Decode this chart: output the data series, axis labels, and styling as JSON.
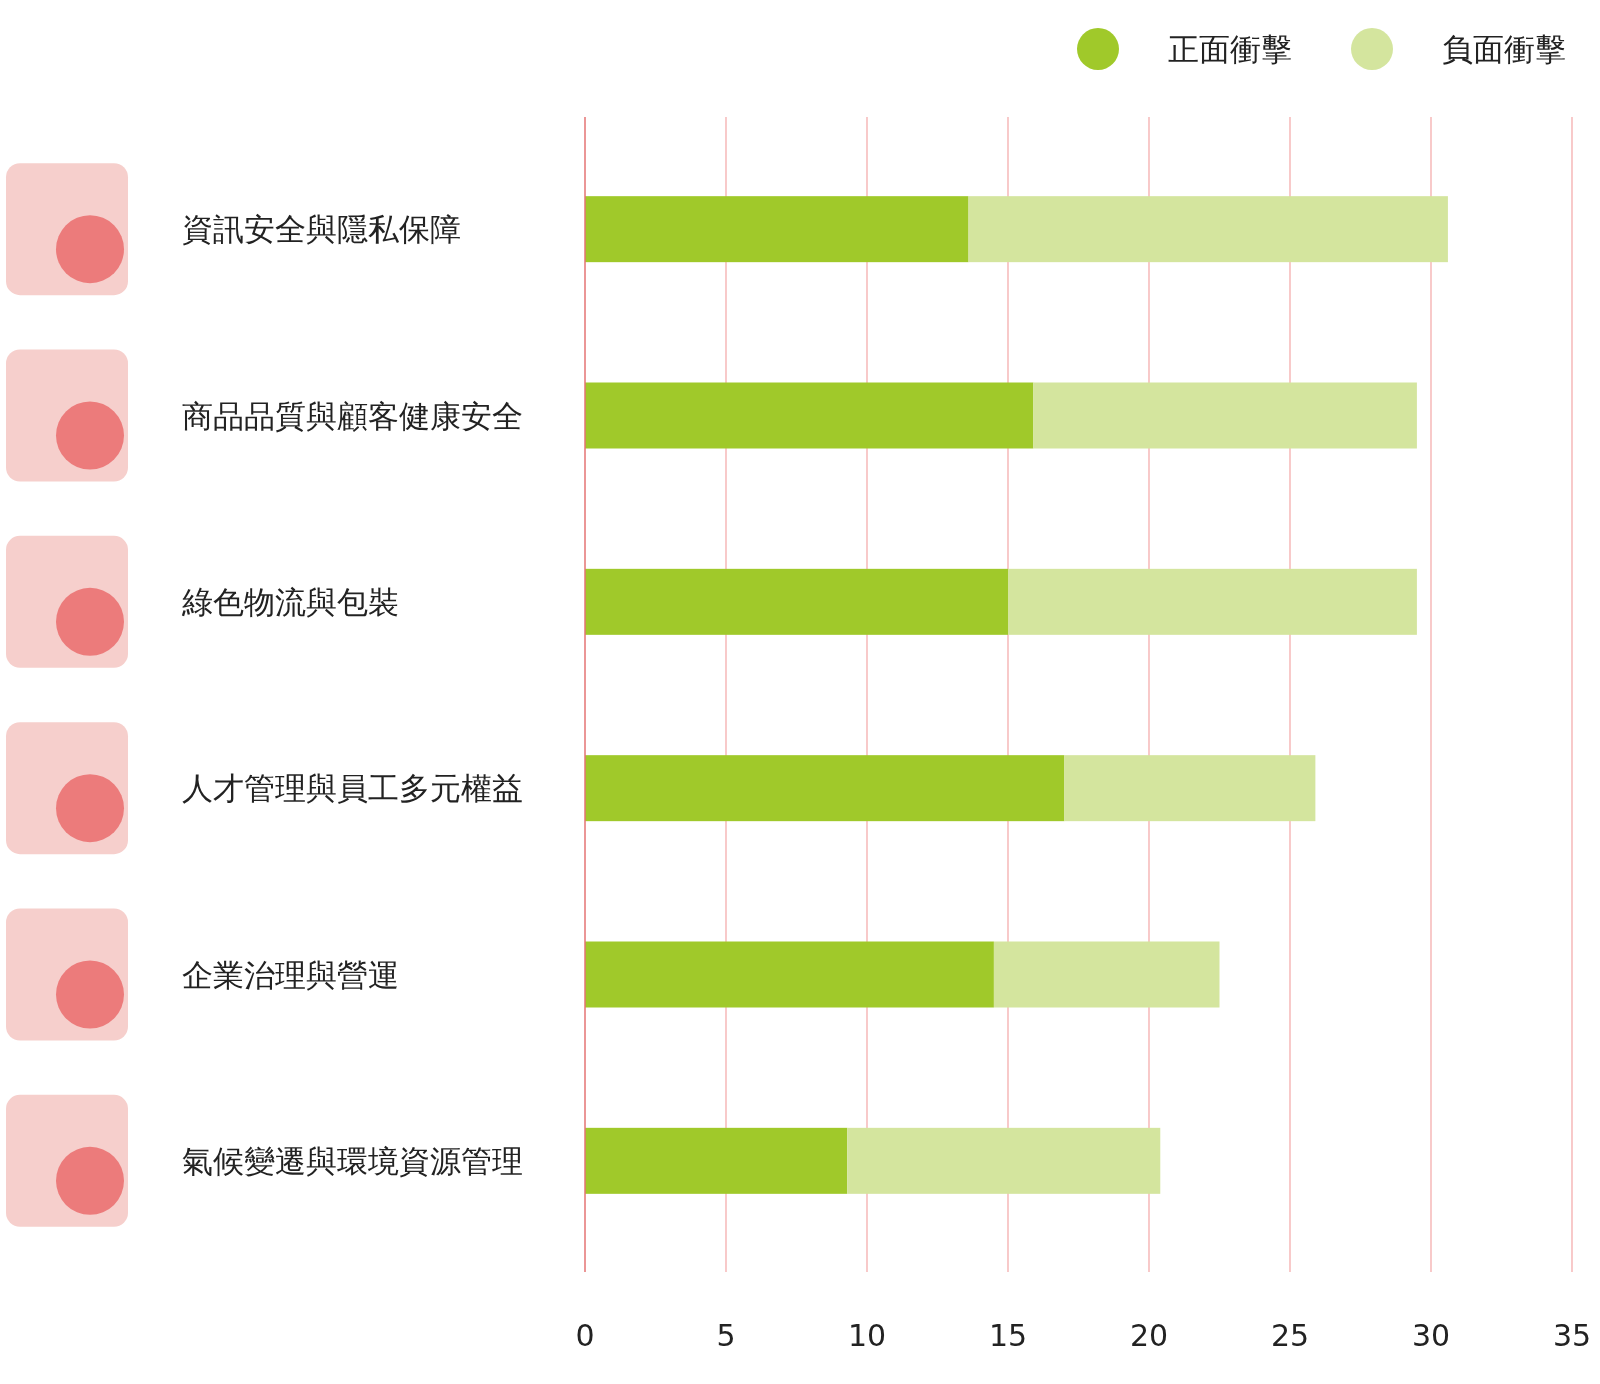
{
  "chart_data": {
    "type": "bar",
    "orientation": "horizontal",
    "stacked": true,
    "categories": [
      "資訊安全與隱私保障",
      "商品品質與顧客健康安全",
      "綠色物流與包裝",
      "人才管理與員工多元權益",
      "企業治理與營運",
      "氣候變遷與環境資源管理"
    ],
    "series": [
      {
        "name": "正面衝擊",
        "color": "#a0c92a",
        "values": [
          13.6,
          15.9,
          15.0,
          17.0,
          14.5,
          9.3
        ]
      },
      {
        "name": "負面衝擊",
        "color": "#d4e59e",
        "values": [
          17.0,
          13.6,
          14.5,
          8.9,
          8.0,
          11.1
        ]
      }
    ],
    "xlim": [
      0,
      35
    ],
    "xticks": [
      0,
      5,
      10,
      15,
      20,
      25,
      30,
      35
    ],
    "grid": "x",
    "legend": "top right"
  }
}
